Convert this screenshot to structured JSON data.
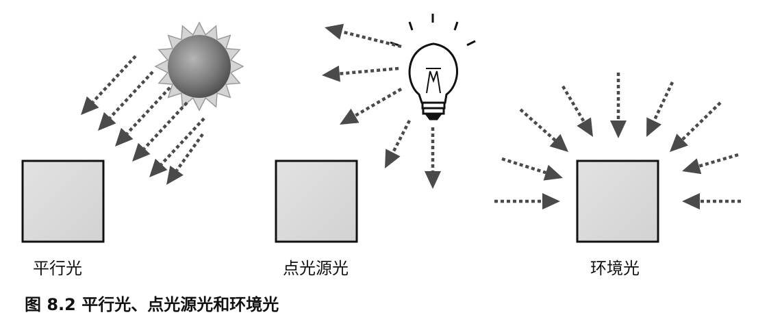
{
  "panels": [
    {
      "label": "平行光"
    },
    {
      "label": "点光源光"
    },
    {
      "label": "环境光"
    }
  ],
  "caption": "图 8.2  平行光、点光源光和环境光",
  "icons": [
    "sun-icon",
    "light-bulb-icon"
  ],
  "colors": {
    "arrow": "#4a4a4a",
    "box_fill": "#dcdcdc",
    "box_stroke": "#111111",
    "sun_core": "#7a7a7a",
    "sun_rays": "#c9c9c9"
  }
}
